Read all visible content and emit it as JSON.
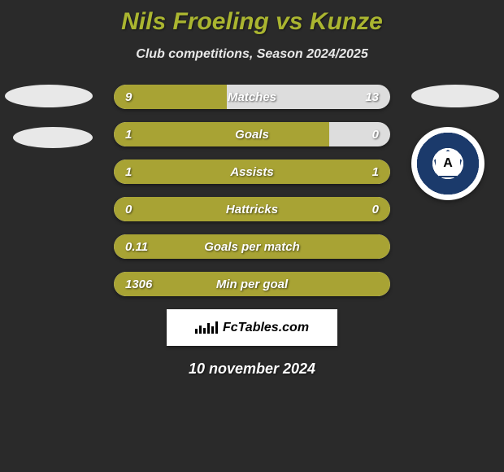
{
  "title": "Nils Froeling vs Kunze",
  "subtitle": "Club competitions, Season 2024/2025",
  "date": "10 november 2024",
  "footer_brand": "FcTables.com",
  "colors": {
    "background": "#2a2a2a",
    "title": "#aab530",
    "bar_fill": "#a8a334",
    "bar_track": "#dddddd",
    "text_light": "#ffffff"
  },
  "bars": [
    {
      "label": "Matches",
      "left": "9",
      "right": "13",
      "fill_pct": 41,
      "fill_full": false
    },
    {
      "label": "Goals",
      "left": "1",
      "right": "0",
      "fill_pct": 78,
      "fill_full": false
    },
    {
      "label": "Assists",
      "left": "1",
      "right": "1",
      "fill_pct": 100,
      "fill_full": true
    },
    {
      "label": "Hattricks",
      "left": "0",
      "right": "0",
      "fill_pct": 100,
      "fill_full": true
    },
    {
      "label": "Goals per match",
      "left": "0.11",
      "right": "",
      "fill_pct": 100,
      "fill_full": true
    },
    {
      "label": "Min per goal",
      "left": "1306",
      "right": "",
      "fill_pct": 100,
      "fill_full": true
    }
  ],
  "right_club": {
    "letter": "A"
  },
  "mini_chart_heights": [
    6,
    10,
    7,
    13,
    9,
    15
  ]
}
